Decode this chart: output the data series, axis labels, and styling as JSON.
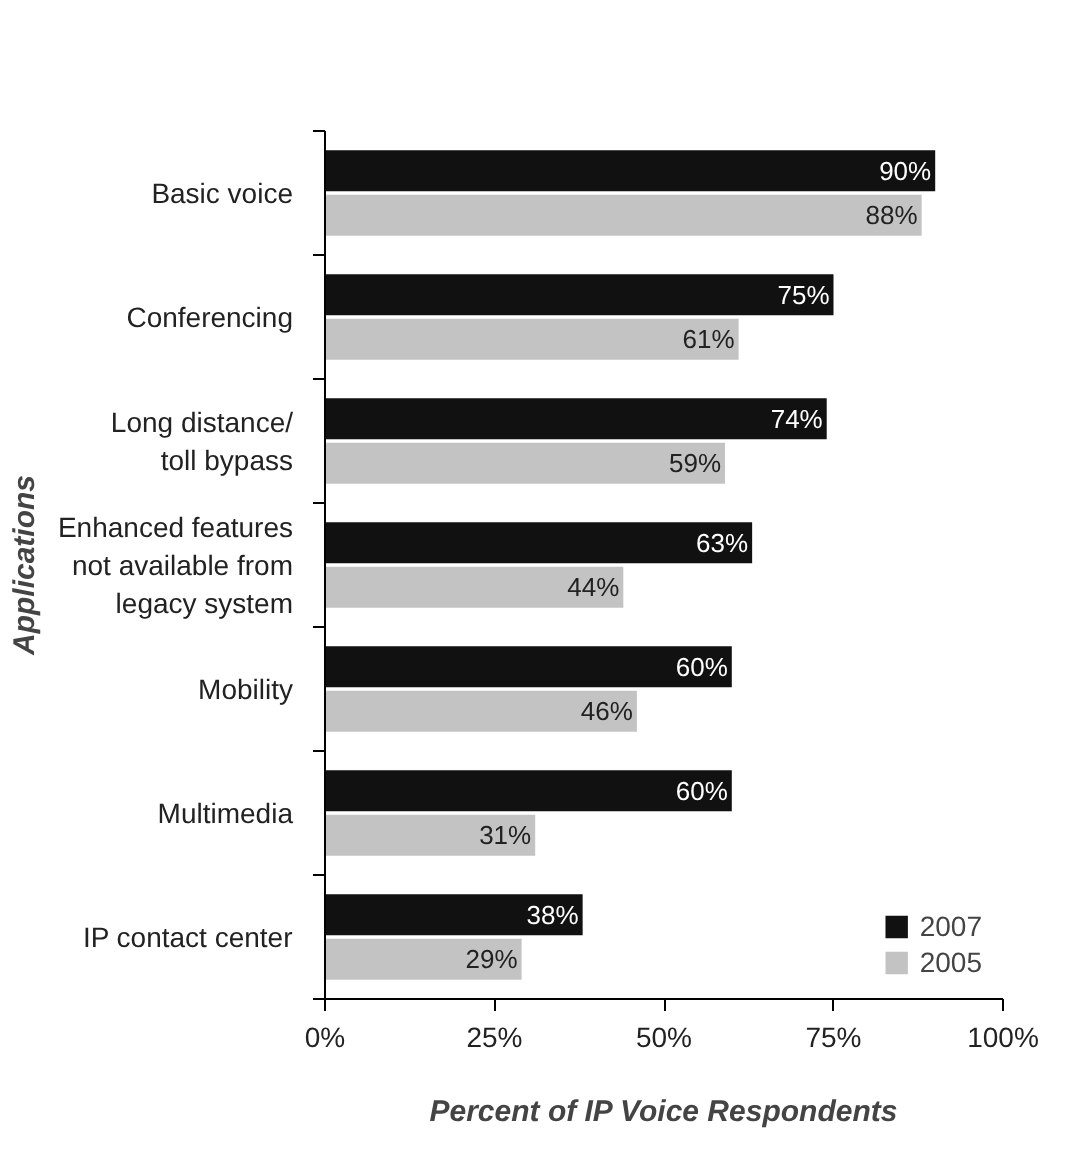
{
  "chart_data": {
    "type": "bar",
    "orientation": "horizontal",
    "xlabel": "Percent of IP Voice Respondents",
    "ylabel": "Applications",
    "categories": [
      "Basic voice",
      "Conferencing",
      "Long distance/\ntoll bypass",
      "Enhanced features\nnot available from\nlegacy system",
      "Mobility",
      "Multimedia",
      "IP contact center"
    ],
    "series": [
      {
        "name": "2007",
        "color": "#111111",
        "values": [
          90,
          75,
          74,
          63,
          60,
          60,
          38
        ],
        "value_labels": [
          "90%",
          "75%",
          "74%",
          "63%",
          "60%",
          "60%",
          "38%"
        ]
      },
      {
        "name": "2005",
        "color": "#c3c3c3",
        "values": [
          88,
          61,
          59,
          44,
          46,
          31,
          29
        ],
        "value_labels": [
          "88%",
          "61%",
          "59%",
          "44%",
          "46%",
          "31%",
          "29%"
        ]
      }
    ],
    "xlim": [
      0,
      100
    ],
    "xticks": [
      {
        "value": 0,
        "label": "0%"
      },
      {
        "value": 25,
        "label": "25%"
      },
      {
        "value": 50,
        "label": "50%"
      },
      {
        "value": 75,
        "label": "75%"
      },
      {
        "value": 100,
        "label": "100%"
      }
    ],
    "legend": "bottom right",
    "grid": false
  }
}
